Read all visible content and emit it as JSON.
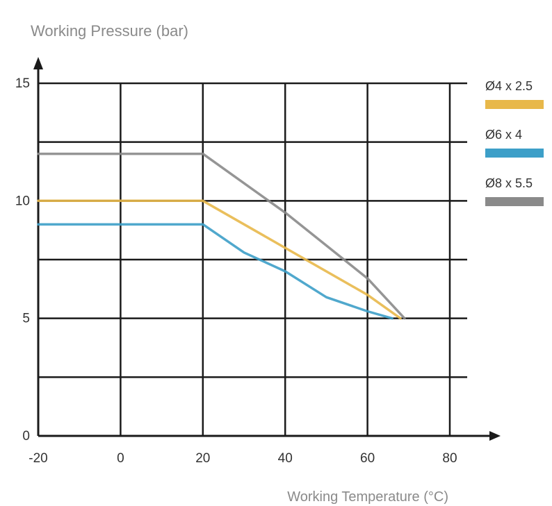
{
  "chart_data": {
    "type": "line",
    "ylabel": "Working Pressure (bar)",
    "xlabel": "Working Temperature (°C)",
    "xlim": [
      -20,
      80
    ],
    "ylim": [
      0,
      15
    ],
    "x_ticks": [
      -20,
      0,
      20,
      40,
      60,
      80
    ],
    "y_ticks": [
      0,
      5,
      10,
      15
    ],
    "grid": true,
    "legend_position": "right",
    "series": [
      {
        "name": "Ø4 x 2.5",
        "color": "#e8b84a",
        "points": [
          [
            -20,
            10
          ],
          [
            20,
            10
          ],
          [
            40,
            8
          ],
          [
            60,
            6
          ],
          [
            68,
            5
          ]
        ]
      },
      {
        "name": "Ø6 x 4",
        "color": "#3d9fc8",
        "points": [
          [
            -20,
            9
          ],
          [
            20,
            9
          ],
          [
            30,
            7.8
          ],
          [
            40,
            7
          ],
          [
            50,
            5.9
          ],
          [
            60,
            5.3
          ],
          [
            66,
            5
          ]
        ]
      },
      {
        "name": "Ø8 x 5.5",
        "color": "#8a8a8a",
        "points": [
          [
            -20,
            12
          ],
          [
            20,
            12
          ],
          [
            40,
            9.5
          ],
          [
            60,
            6.7
          ],
          [
            69,
            5
          ]
        ]
      }
    ]
  }
}
